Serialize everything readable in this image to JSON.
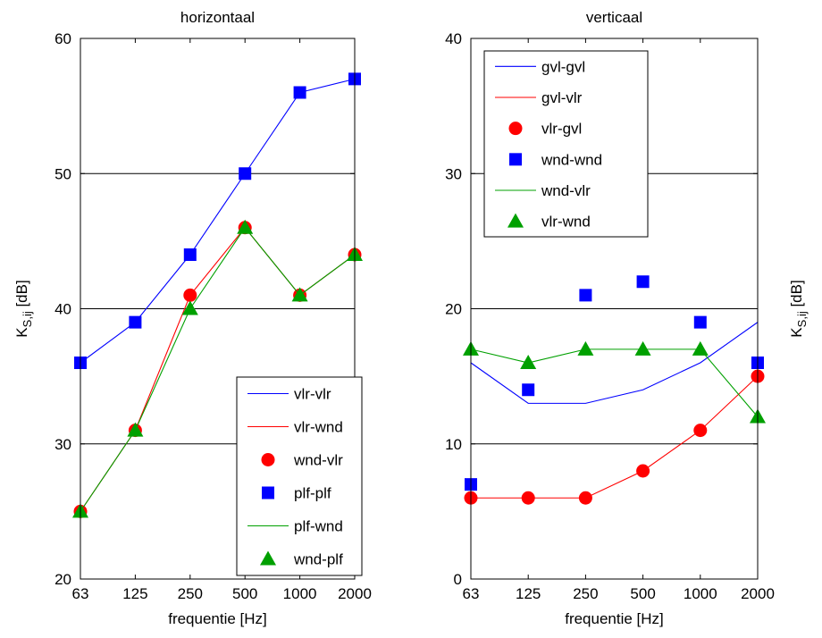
{
  "chart_data": [
    {
      "type": "line",
      "title": "horizontaal",
      "xlabel": "frequentie [Hz]",
      "ylabel_main": "K",
      "ylabel_sub": "S,ij",
      "ylabel_unit": " [dB]",
      "categories": [
        "63",
        "125",
        "250",
        "500",
        "1000",
        "2000"
      ],
      "ylim": [
        20,
        60
      ],
      "yticks": [
        20,
        30,
        40,
        50,
        60
      ],
      "grid": "horizontal",
      "legend_position": "bottom-right",
      "series": [
        {
          "name": "vlr-vlr",
          "style": "line",
          "color": "#0000ff",
          "values": [
            36,
            39,
            44,
            50,
            56,
            57
          ]
        },
        {
          "name": "vlr-wnd",
          "style": "line",
          "color": "#ff0000",
          "values": [
            25,
            31,
            41,
            46,
            41,
            44
          ]
        },
        {
          "name": "wnd-vlr",
          "style": "circle",
          "color": "#ff0000",
          "values": [
            25,
            31,
            41,
            46,
            41,
            44
          ]
        },
        {
          "name": "plf-plf",
          "style": "square",
          "color": "#0000ff",
          "values": [
            36,
            39,
            44,
            50,
            56,
            57
          ]
        },
        {
          "name": "plf-wnd",
          "style": "line",
          "color": "#00a000",
          "values": [
            25,
            31,
            40,
            46,
            41,
            44
          ]
        },
        {
          "name": "wnd-plf",
          "style": "triangle",
          "color": "#00a000",
          "values": [
            25,
            31,
            40,
            46,
            41,
            44
          ]
        }
      ]
    },
    {
      "type": "line",
      "title": "verticaal",
      "xlabel": "frequentie [Hz]",
      "ylabel_main": "K",
      "ylabel_sub": "S,ij",
      "ylabel_unit": " [dB]",
      "categories": [
        "63",
        "125",
        "250",
        "500",
        "1000",
        "2000"
      ],
      "ylim": [
        0,
        40
      ],
      "yticks": [
        0,
        10,
        20,
        30,
        40
      ],
      "grid": "horizontal",
      "legend_position": "top-left",
      "series": [
        {
          "name": "gvl-gvl",
          "style": "line",
          "color": "#0000ff",
          "values": [
            16,
            13,
            13,
            14,
            16,
            19
          ]
        },
        {
          "name": "gvl-vlr",
          "style": "line",
          "color": "#ff0000",
          "values": [
            6,
            6,
            6,
            8,
            11,
            15
          ]
        },
        {
          "name": "vlr-gvl",
          "style": "circle",
          "color": "#ff0000",
          "values": [
            6,
            6,
            6,
            8,
            11,
            15
          ]
        },
        {
          "name": "wnd-wnd",
          "style": "square",
          "color": "#0000ff",
          "values": [
            7,
            14,
            21,
            22,
            19,
            16
          ]
        },
        {
          "name": "wnd-vlr",
          "style": "line",
          "color": "#00a000",
          "values": [
            17,
            16,
            17,
            17,
            17,
            12
          ]
        },
        {
          "name": "vlr-wnd",
          "style": "triangle",
          "color": "#00a000",
          "values": [
            17,
            16,
            17,
            17,
            17,
            12
          ]
        }
      ]
    }
  ]
}
